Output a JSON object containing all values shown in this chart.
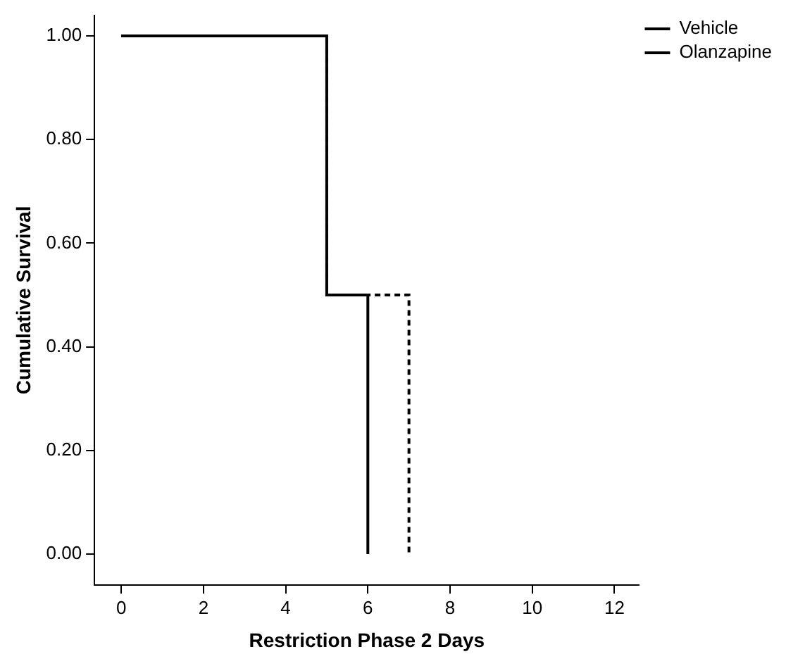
{
  "chart_data": {
    "type": "step",
    "xlabel": "Restriction Phase 2 Days",
    "ylabel": "Cumulative Survival",
    "xlim": [
      -0.65,
      12.6
    ],
    "xticks": [
      0,
      2,
      4,
      6,
      8,
      10,
      12
    ],
    "ylim": [
      -0.06,
      1.04
    ],
    "yticks": [
      {
        "value": 0,
        "label": "0.00"
      },
      {
        "value": 0.2,
        "label": "0.20"
      },
      {
        "value": 0.4,
        "label": "0.40"
      },
      {
        "value": 0.6,
        "label": "0.60"
      },
      {
        "value": 0.8,
        "label": "0.80"
      },
      {
        "value": 1,
        "label": "1.00"
      }
    ],
    "grid": false,
    "legend": "top right",
    "marker": "none",
    "series": [
      {
        "name": "Vehicle",
        "color": "#000000",
        "line_style": "solid",
        "x": [
          0,
          5,
          6
        ],
        "values": [
          1,
          0.5,
          0
        ]
      },
      {
        "name": "Olanzapine",
        "color": "#000000",
        "line_style": "dashed",
        "x": [
          0,
          5,
          7
        ],
        "values": [
          1,
          0.5,
          0
        ]
      }
    ]
  }
}
